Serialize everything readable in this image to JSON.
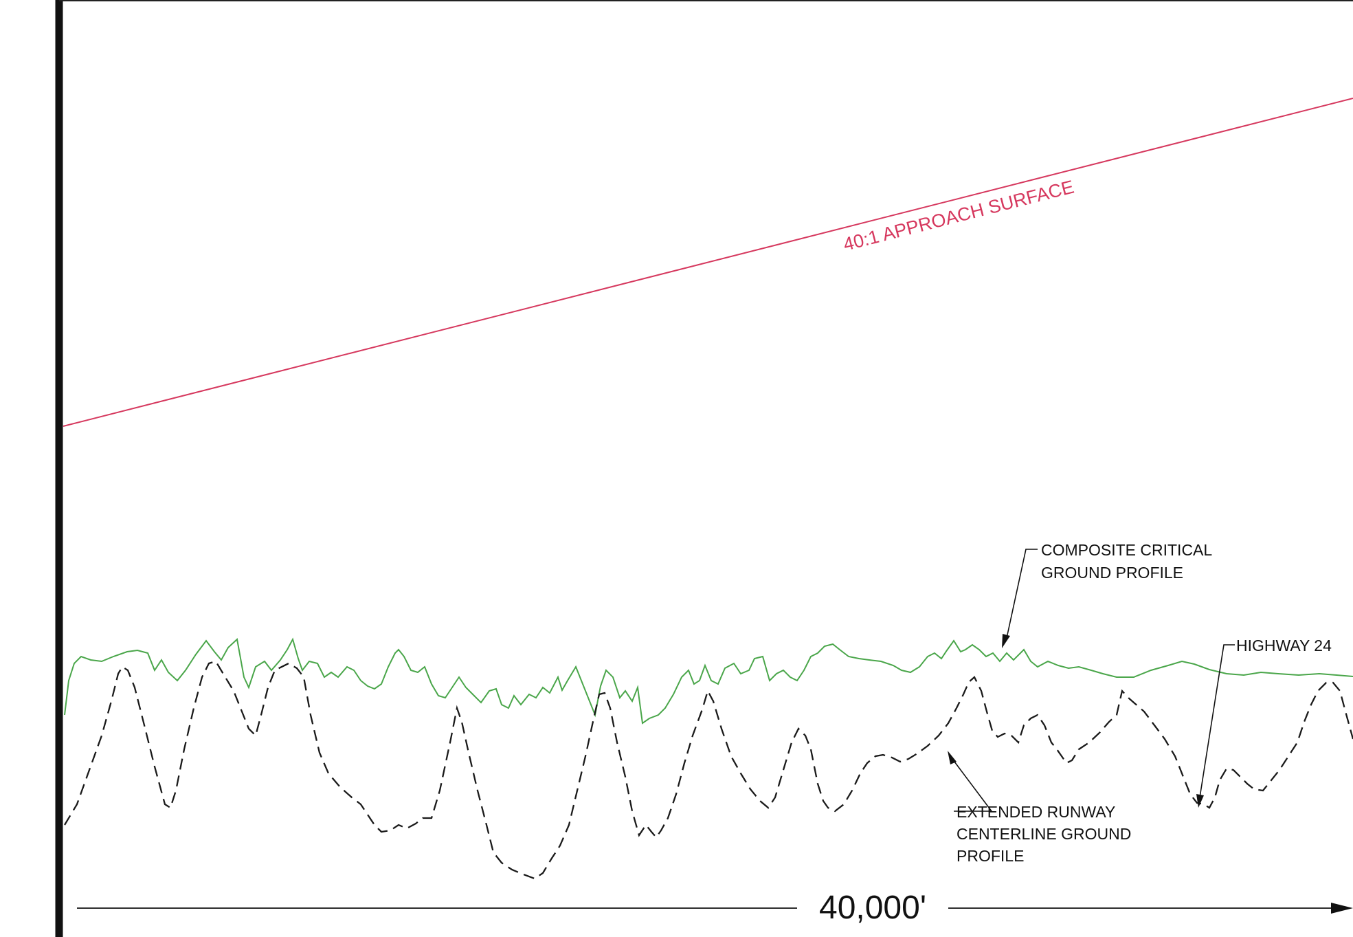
{
  "approach_surface": {
    "label": "40:1 APPROACH SURFACE",
    "color": "#d6385e"
  },
  "composite_profile": {
    "label_line1": "COMPOSITE CRITICAL",
    "label_line2": "GROUND PROFILE",
    "color": "#4aa64a"
  },
  "highway": {
    "label": "HIGHWAY 24"
  },
  "centerline_profile": {
    "label_line1": "EXTENDED RUNWAY",
    "label_line2": "CENTERLINE GROUND",
    "label_line3": "PROFILE",
    "color": "#1a1a1a"
  },
  "dimension": {
    "label": "40,000'"
  }
}
